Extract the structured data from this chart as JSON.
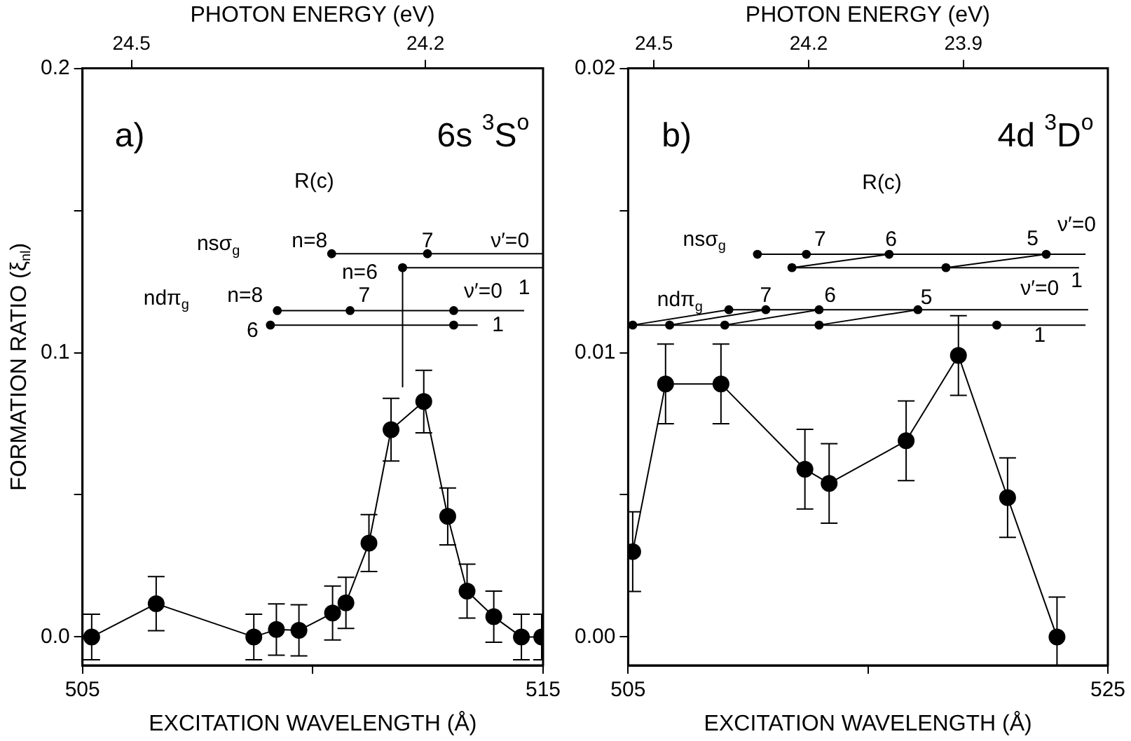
{
  "chart_data": [
    {
      "type": "line",
      "xlabel": "EXCITATION WAVELENGTH (Å)",
      "ylabel": "FORMATION RATIO (ξ$_{nl}$)",
      "x2label": "PHOTON ENERGY (eV)",
      "xlim": [
        505,
        515
      ],
      "xticks": [
        505,
        {
          "value": 510,
          "label": null
        },
        515
      ],
      "ylim": [
        -0.01,
        0.2
      ],
      "yticks": [
        {
          "value": 0,
          "label": "0.0"
        },
        {
          "value": 0.05,
          "label": null
        },
        0.1,
        {
          "value": 0.15,
          "label": null
        },
        0.2
      ],
      "x2lim": [
        24.55,
        24.08
      ],
      "x2ticks": [
        24.5,
        24.2
      ],
      "grid": false,
      "legend": false,
      "marker": "circle",
      "annotations": [
        "a)",
        "6s $^{3}$S$^{o}$",
        "R(c)",
        "nsσ$_{g}$",
        "n=8",
        "7",
        "ν′=0",
        "n=6",
        "1",
        "ν′=0",
        "ndπ$_{g}$",
        "n=8",
        "7",
        "6",
        "1"
      ],
      "series": [
        {
          "type": "line",
          "color": "#000000",
          "x": [
            505.2,
            506.6,
            508.72,
            509.21,
            509.7,
            510.43,
            510.72,
            511.22,
            511.7,
            512.41,
            512.93,
            513.35,
            513.93,
            514.53,
            514.97
          ],
          "values": [
            0,
            0.0117,
            0,
            0.0026,
            0.0023,
            0.0084,
            0.012,
            0.033,
            0.0729,
            0.0828,
            0.0424,
            0.0161,
            0.0071,
            0,
            0
          ],
          "errors": [
            0.008,
            0.0095,
            0.008,
            0.009,
            0.009,
            0.0095,
            0.009,
            0.01,
            0.011,
            0.011,
            0.01,
            0.0095,
            0.009,
            0.008,
            0.008
          ]
        },
        {
          "type": "line",
          "marker": "none",
          "color": "#000000",
          "x": [
            510.41,
            515
          ],
          "values": [
            0.1348,
            0.1348
          ]
        },
        {
          "type": "line",
          "marker": "none",
          "color": "#000000",
          "x": [
            511.95,
            515
          ],
          "values": [
            0.1299,
            0.1299
          ]
        },
        {
          "type": "line",
          "marker": "none",
          "color": "#000000",
          "x": [
            509.23,
            514.59
          ],
          "values": [
            0.1148,
            0.1148
          ]
        },
        {
          "type": "line",
          "marker": "none",
          "color": "#000000",
          "x": [
            509.08,
            513.58
          ],
          "values": [
            0.1097,
            0.1097
          ]
        },
        {
          "type": "line",
          "marker": "none",
          "color": "#000000",
          "x": [
            511.95,
            511.95
          ],
          "values": [
            0.1299,
            0.088
          ]
        },
        {
          "type": "scatter",
          "color": "#000000",
          "x": [
            510.41,
            512.49,
            511.95,
            509.23,
            510.81,
            513.06,
            509.08,
            513.06
          ],
          "values": [
            0.1348,
            0.1348,
            0.1299,
            0.1148,
            0.1148,
            0.1148,
            0.1097,
            0.1097
          ]
        }
      ]
    },
    {
      "type": "line",
      "xlabel": "EXCITATION WAVELENGTH (Å)",
      "x2label": "PHOTON ENERGY (eV)",
      "xlim": [
        505,
        525
      ],
      "xticks": [
        505,
        {
          "value": 515,
          "label": null
        },
        525
      ],
      "ylim": [
        -0.001,
        0.02
      ],
      "yticks": [
        {
          "value": 0,
          "label": "0.00"
        },
        {
          "value": 0.005,
          "label": null
        },
        {
          "value": 0.01,
          "label": "0.01"
        },
        {
          "value": 0.015,
          "label": null
        },
        {
          "value": 0.02,
          "label": "0.02"
        }
      ],
      "x2lim": [
        24.55,
        23.62
      ],
      "x2ticks": [
        24.5,
        24.2,
        23.9
      ],
      "grid": false,
      "legend": false,
      "marker": "circle",
      "annotations": [
        "b)",
        "4d $^{3}$D$^{o}$",
        "R(c)",
        "nsσ$_{g}$",
        "7",
        "6",
        "5",
        "ν′=0",
        "1",
        "ndπ$_{g}$",
        "7",
        "6",
        "5",
        "ν′=0",
        "1"
      ],
      "series": [
        {
          "type": "line",
          "color": "#000000",
          "x": [
            505.19,
            506.56,
            508.87,
            512.37,
            513.38,
            516.59,
            518.77,
            520.82,
            522.88
          ],
          "values": [
            0.003,
            0.0089,
            0.0089,
            0.0059,
            0.0054,
            0.0069,
            0.0099,
            0.0049,
            0
          ],
          "errors": [
            0.0014,
            0.0014,
            0.0014,
            0.0014,
            0.0014,
            0.0014,
            0.0014,
            0.0014,
            0.0014
          ]
        },
        {
          "type": "line",
          "marker": "none",
          "color": "#000000",
          "x": [
            510.39,
            524.07
          ],
          "values": [
            0.01346,
            0.01346
          ]
        },
        {
          "type": "line",
          "marker": "none",
          "color": "#000000",
          "x": [
            511.83,
            523.8
          ],
          "values": [
            0.01299,
            0.01299
          ]
        },
        {
          "type": "line",
          "marker": "none",
          "color": "#000000",
          "x": [
            509.2,
            524.18
          ],
          "values": [
            0.01151,
            0.01151
          ]
        },
        {
          "type": "line",
          "marker": "none",
          "color": "#000000",
          "x": [
            505.19,
            524.07
          ],
          "values": [
            0.01097,
            0.01097
          ]
        },
        {
          "type": "line",
          "marker": "none",
          "color": "#000000",
          "x": [
            511.83,
            515.88
          ],
          "values": [
            0.01299,
            0.01346
          ]
        },
        {
          "type": "line",
          "marker": "none",
          "color": "#000000",
          "x": [
            518.25,
            522.43
          ],
          "values": [
            0.01299,
            0.01346
          ]
        },
        {
          "type": "line",
          "marker": "none",
          "color": "#000000",
          "x": [
            505.19,
            509.2
          ],
          "values": [
            0.01097,
            0.01151
          ]
        },
        {
          "type": "line",
          "marker": "none",
          "color": "#000000",
          "x": [
            506.73,
            510.74
          ],
          "values": [
            0.01097,
            0.01151
          ]
        },
        {
          "type": "line",
          "marker": "none",
          "color": "#000000",
          "x": [
            509.03,
            512.96
          ],
          "values": [
            0.01097,
            0.01151
          ]
        },
        {
          "type": "line",
          "marker": "none",
          "color": "#000000",
          "x": [
            512.96,
            517.08
          ],
          "values": [
            0.01097,
            0.01151
          ]
        },
        {
          "type": "scatter",
          "color": "#000000",
          "x": [
            510.39,
            512.43,
            515.88,
            522.43,
            511.83,
            518.25,
            509.2,
            510.74,
            512.96,
            517.08,
            505.19,
            506.73,
            509.03,
            512.96,
            520.37
          ],
          "values": [
            0.01346,
            0.01346,
            0.01346,
            0.01346,
            0.01299,
            0.01299,
            0.01151,
            0.01151,
            0.01151,
            0.01151,
            0.01097,
            0.01097,
            0.01097,
            0.01097,
            0.01097
          ]
        }
      ]
    }
  ]
}
